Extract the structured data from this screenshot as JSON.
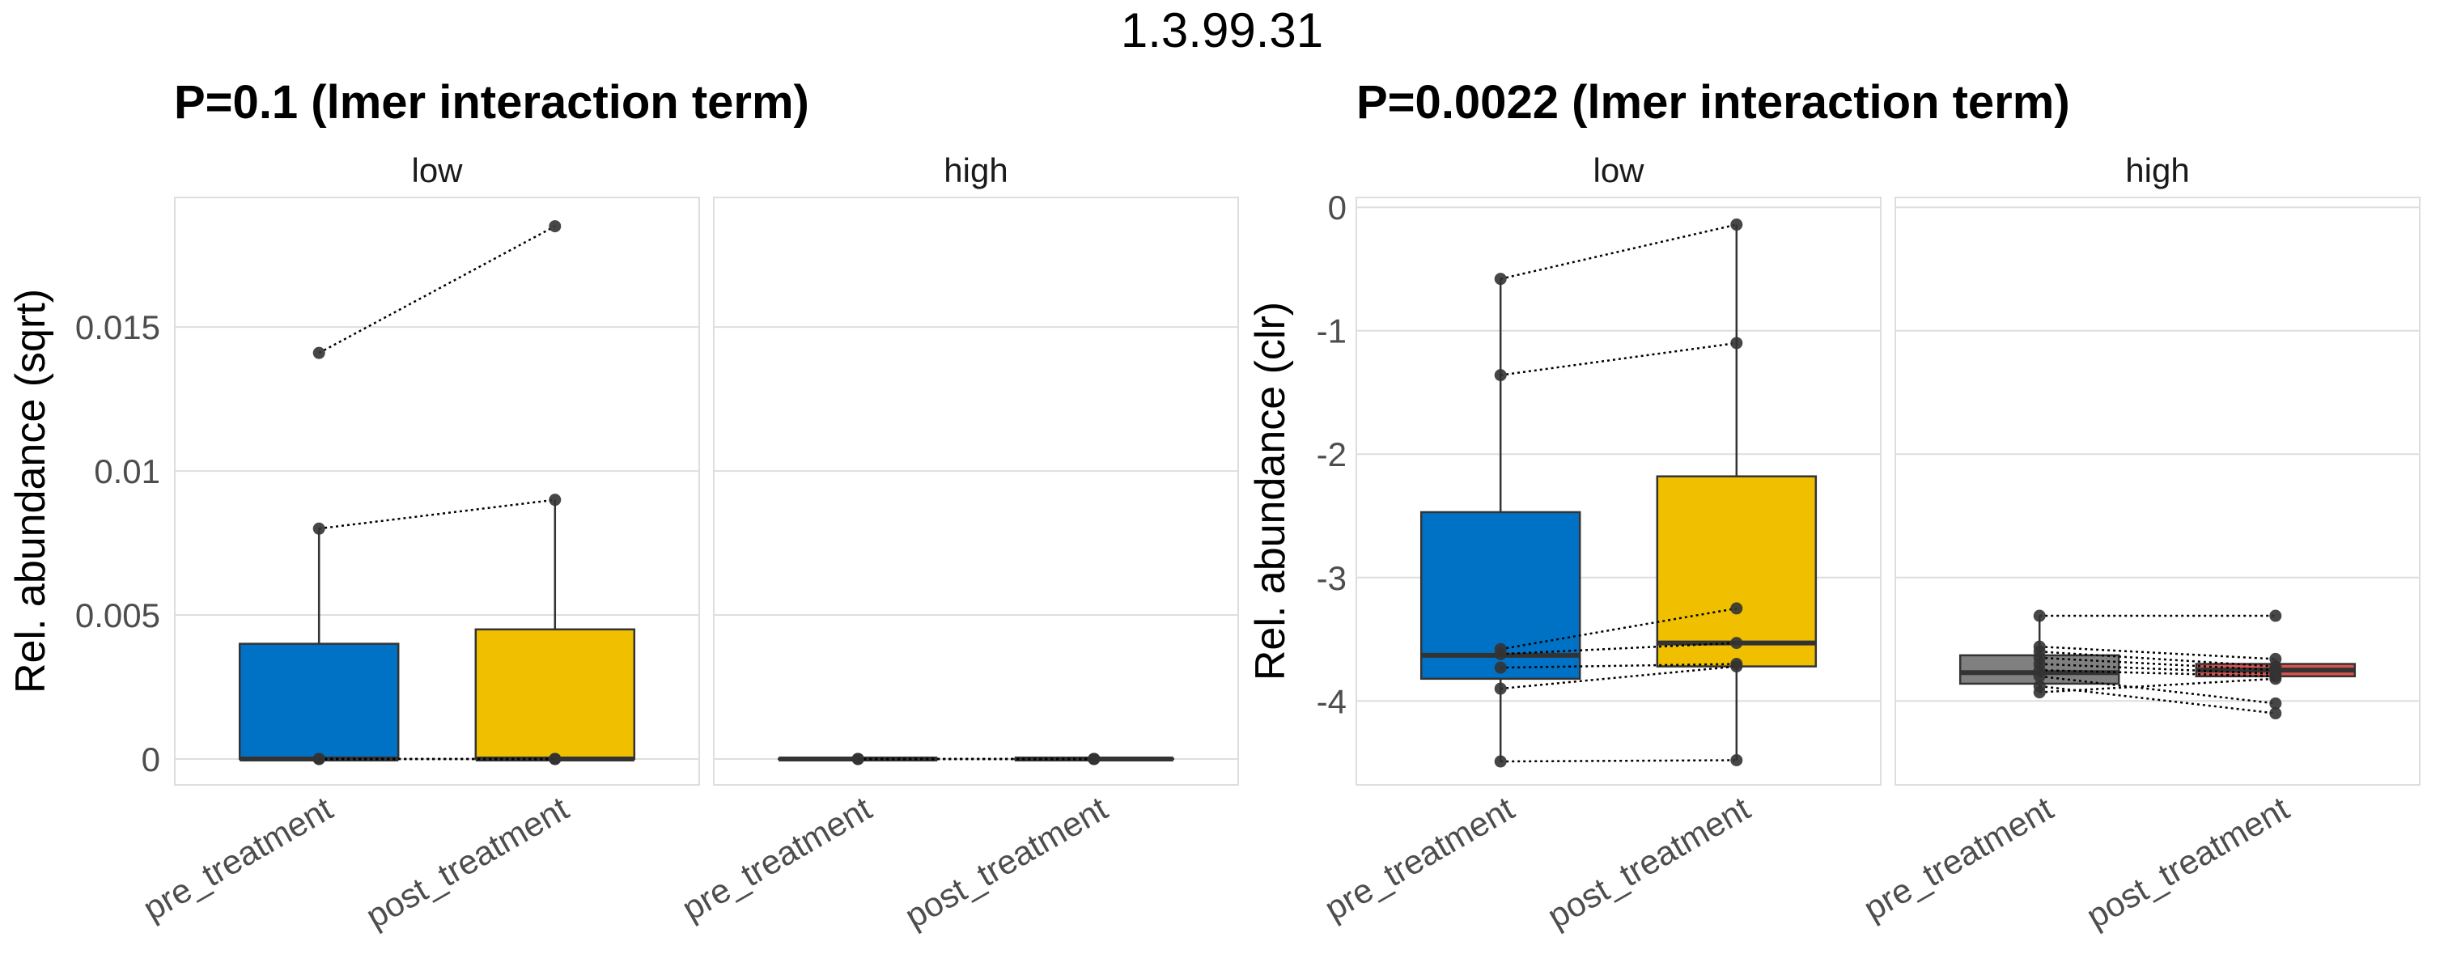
{
  "figure_title": "1.3.99.31",
  "chart_data": [
    {
      "type": "box",
      "title": "P=0.1 (lmer interaction term)",
      "ylabel": "Rel. abundance (sqrt)",
      "ylim": [
        -0.0009,
        0.0195
      ],
      "yticks": [
        0,
        0.005,
        0.01,
        0.015
      ],
      "ytick_labels": [
        "0",
        "0.005",
        "0.01",
        "0.015"
      ],
      "categories": [
        "pre_treatment",
        "post_treatment"
      ],
      "colors": {
        "pre_treatment": "#0072C6",
        "post_treatment": "#F0C000"
      },
      "facets": [
        {
          "label": "low",
          "boxes": [
            {
              "category": "pre_treatment",
              "q1": 0,
              "median": 0,
              "q3": 0.004,
              "whisker_low": 0,
              "whisker_high": 0.008
            },
            {
              "category": "post_treatment",
              "q1": 0,
              "median": 0,
              "q3": 0.0045,
              "whisker_low": 0,
              "whisker_high": 0.009
            }
          ],
          "pairs": [
            [
              0.0141,
              0.0185
            ],
            [
              0.008,
              0.009
            ],
            [
              0,
              0
            ],
            [
              0,
              0
            ],
            [
              0,
              0
            ]
          ]
        },
        {
          "label": "high",
          "boxes": [
            {
              "category": "pre_treatment",
              "q1": 0,
              "median": 0,
              "q3": 0,
              "whisker_low": 0,
              "whisker_high": 0
            },
            {
              "category": "post_treatment",
              "q1": 0,
              "median": 0,
              "q3": 0,
              "whisker_low": 0,
              "whisker_high": 0
            }
          ],
          "pairs": [
            [
              0,
              0
            ],
            [
              0,
              0
            ],
            [
              0,
              0
            ],
            [
              0,
              0
            ]
          ]
        }
      ]
    },
    {
      "type": "box",
      "title": "P=0.0022 (lmer interaction term)",
      "ylabel": "Rel. abundance (clr)",
      "ylim": [
        -4.68,
        0.08
      ],
      "yticks": [
        0,
        -1,
        -2,
        -3,
        -4
      ],
      "ytick_labels": [
        "0",
        "-1",
        "-2",
        "-3",
        "-4"
      ],
      "categories": [
        "pre_treatment",
        "post_treatment"
      ],
      "colors": {
        "pre_treatment": "#0072C6",
        "post_treatment": "#F0C000"
      },
      "facets": [
        {
          "label": "low",
          "boxes": [
            {
              "category": "pre_treatment",
              "q1": -3.82,
              "median": -3.63,
              "q3": -2.47,
              "whisker_low": -4.49,
              "whisker_high": -0.58
            },
            {
              "category": "post_treatment",
              "q1": -3.72,
              "median": -3.53,
              "q3": -2.18,
              "whisker_low": -4.48,
              "whisker_high": -0.14
            }
          ],
          "pairs": [
            [
              -0.58,
              -0.14
            ],
            [
              -1.36,
              -1.1
            ],
            [
              -3.58,
              -3.25
            ],
            [
              -3.62,
              -3.53
            ],
            [
              -3.73,
              -3.7
            ],
            [
              -3.9,
              -3.72
            ],
            [
              -4.49,
              -4.48
            ]
          ]
        },
        {
          "label": "high",
          "boxes": [
            {
              "category": "pre_treatment",
              "q1": -3.86,
              "median": -3.77,
              "q3": -3.63,
              "whisker_low": -3.93,
              "whisker_high": -3.31,
              "fill": "#808080"
            },
            {
              "category": "post_treatment",
              "q1": -3.8,
              "median": -3.75,
              "q3": -3.7,
              "whisker_low": -3.83,
              "whisker_high": -3.66,
              "fill": "#D9534F"
            }
          ],
          "pairs": [
            [
              -3.31,
              -3.31
            ],
            [
              -3.56,
              -3.66
            ],
            [
              -3.6,
              -3.72
            ],
            [
              -3.65,
              -3.75
            ],
            [
              -3.7,
              -3.78
            ],
            [
              -3.75,
              -3.8
            ],
            [
              -3.8,
              -4.02
            ],
            [
              -3.88,
              -4.1
            ],
            [
              -3.93,
              -3.82
            ]
          ]
        }
      ]
    }
  ]
}
